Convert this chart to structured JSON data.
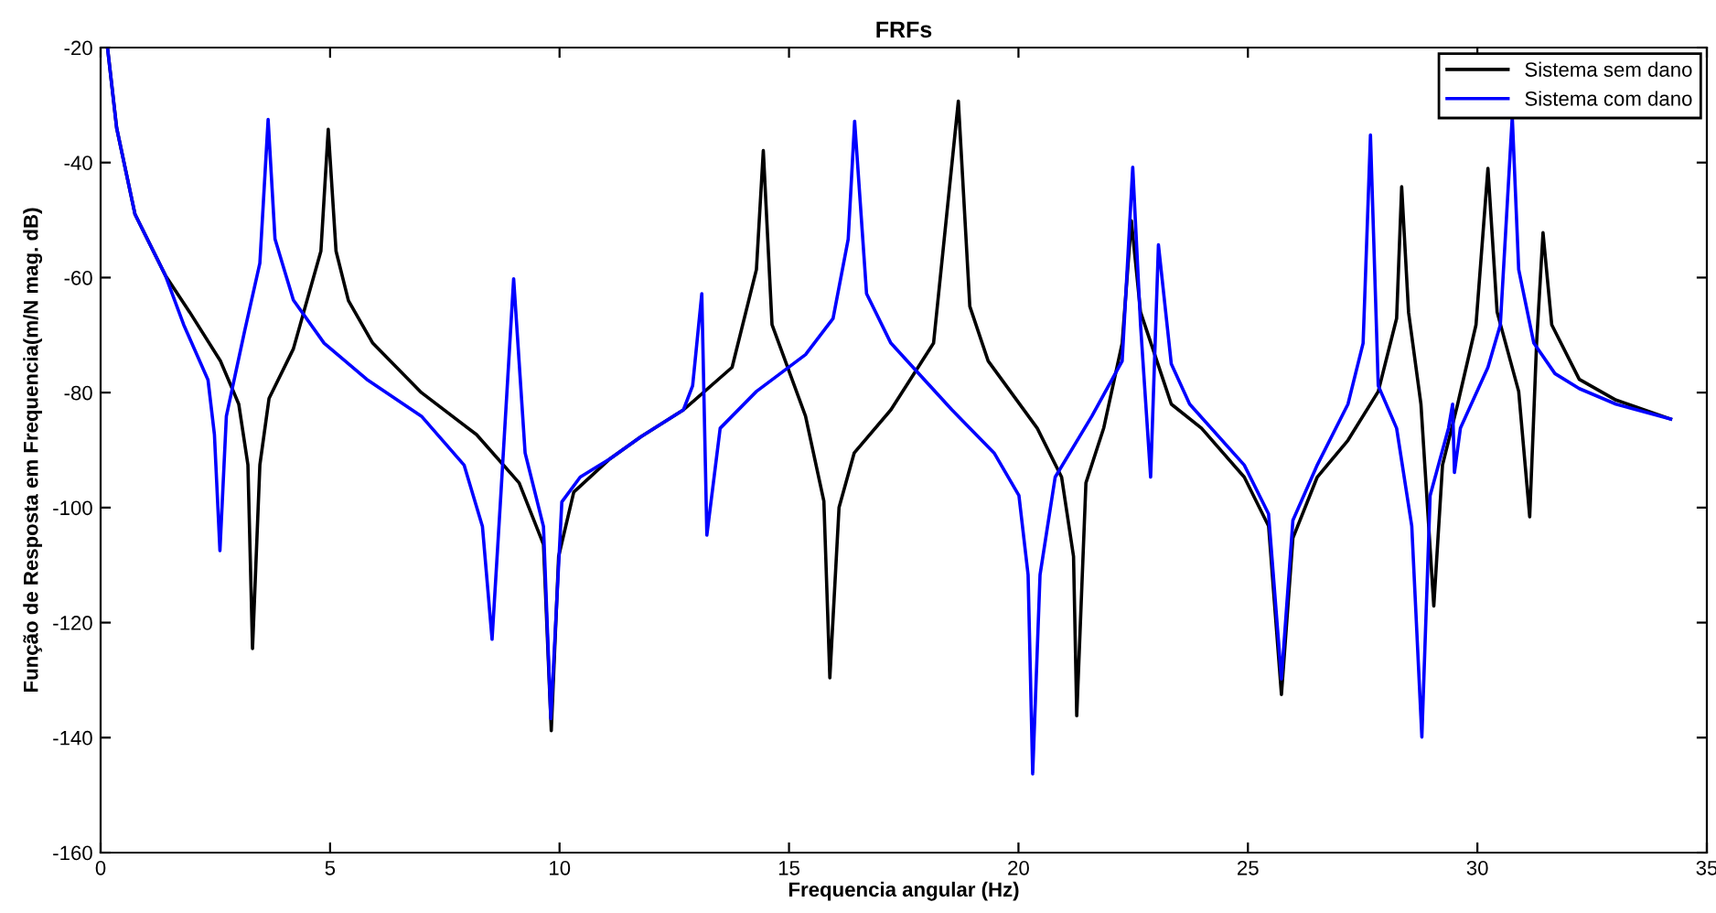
{
  "chart_data": {
    "type": "line",
    "title": "FRFs",
    "xlabel": "Frequencia angular (Hz)",
    "ylabel": "Função de Resposta em Frequencia(m/N mag. dB)",
    "xlim": [
      0,
      35
    ],
    "ylim": [
      -160,
      -20
    ],
    "xticks": [
      0,
      5,
      10,
      15,
      20,
      25,
      30,
      35
    ],
    "yticks": [
      -160,
      -140,
      -120,
      -100,
      -80,
      -60,
      -40,
      -20
    ],
    "grid": false,
    "legend": "top right",
    "marker": "none",
    "line_style": "solid",
    "series": [
      {
        "name": "Sistema sem dano",
        "color": "#000000",
        "x": [
          0.15,
          0.35,
          0.75,
          1.41,
          1.94,
          2.61,
          3.01,
          3.21,
          3.31,
          3.47,
          3.67,
          4.2,
          4.8,
          4.96,
          5.13,
          5.4,
          5.93,
          6.99,
          8.19,
          9.12,
          9.65,
          9.82,
          9.98,
          10.31,
          11.1,
          11.77,
          12.7,
          13.76,
          14.29,
          14.44,
          14.63,
          15.36,
          15.76,
          15.89,
          16.09,
          16.42,
          17.22,
          18.15,
          18.69,
          18.94,
          19.34,
          20.41,
          20.94,
          21.2,
          21.27,
          21.47,
          21.86,
          22.26,
          22.46,
          22.66,
          23.33,
          23.99,
          24.92,
          25.45,
          25.73,
          25.98,
          26.51,
          27.18,
          27.84,
          28.24,
          28.35,
          28.5,
          28.77,
          29.05,
          29.24,
          29.57,
          29.97,
          30.23,
          30.43,
          30.9,
          31.14,
          31.29,
          31.43,
          31.62,
          32.22,
          33.02,
          34.21
        ],
        "values": [
          -20,
          -34,
          -49,
          -59.6,
          -66,
          -74.5,
          -82,
          -92.6,
          -124.5,
          -92.6,
          -81,
          -72.4,
          -55.4,
          -34.2,
          -55.4,
          -64,
          -71.4,
          -80,
          -87.3,
          -95.7,
          -106.4,
          -138.8,
          -108.5,
          -97.3,
          -91.5,
          -87.7,
          -83,
          -75.6,
          -58.6,
          -37.9,
          -68.2,
          -84.1,
          -98.9,
          -129.6,
          -100,
          -90.5,
          -83,
          -71.4,
          -29.3,
          -65,
          -74.5,
          -86.2,
          -94.7,
          -108.5,
          -136.2,
          -95.7,
          -86.1,
          -71.4,
          -50.1,
          -66,
          -82,
          -86.2,
          -94.7,
          -103.2,
          -132.5,
          -105.3,
          -94.7,
          -88.3,
          -79.8,
          -67.1,
          -44.2,
          -66,
          -82,
          -117.1,
          -92.6,
          -82,
          -68.2,
          -41,
          -66,
          -79.8,
          -101.6,
          -71.4,
          -52.2,
          -68.2,
          -77.7,
          -81.3,
          -84.6
        ]
      },
      {
        "name": "Sistema com dano",
        "color": "#0000ff",
        "x": [
          0.15,
          0.35,
          0.75,
          1.41,
          1.81,
          2.34,
          2.48,
          2.6,
          2.74,
          3.14,
          3.47,
          3.65,
          3.8,
          4.2,
          4.87,
          5.8,
          6.99,
          7.92,
          8.32,
          8.53,
          8.72,
          9.0,
          9.25,
          9.65,
          9.81,
          10.05,
          10.45,
          11.1,
          11.77,
          12.7,
          12.9,
          13.1,
          13.21,
          13.5,
          14.29,
          15.36,
          15.96,
          16.29,
          16.43,
          16.69,
          17.22,
          18.55,
          19.47,
          20.01,
          20.21,
          20.31,
          20.47,
          20.8,
          21.6,
          22.26,
          22.49,
          22.66,
          22.88,
          23.05,
          23.33,
          23.73,
          24.92,
          25.45,
          25.73,
          25.98,
          26.51,
          27.18,
          27.51,
          27.67,
          27.84,
          28.24,
          28.57,
          28.79,
          28.97,
          29.37,
          29.46,
          29.5,
          29.63,
          30.23,
          30.5,
          30.76,
          30.9,
          31.23,
          31.69,
          32.22,
          33.02,
          34.21
        ],
        "values": [
          -20,
          -34,
          -49,
          -59.6,
          -68.2,
          -77.8,
          -87.3,
          -107.5,
          -84.1,
          -69.2,
          -57.5,
          -32.5,
          -53.3,
          -63.9,
          -71.4,
          -77.7,
          -84.1,
          -92.6,
          -103.3,
          -122.9,
          -97.9,
          -60.2,
          -90.5,
          -103.3,
          -136.7,
          -99,
          -94.7,
          -91.5,
          -87.7,
          -83,
          -78.8,
          -62.8,
          -104.8,
          -86.2,
          -79.8,
          -73.4,
          -67.1,
          -53.3,
          -32.8,
          -62.8,
          -71.4,
          -83,
          -90.5,
          -97.9,
          -111.7,
          -146.3,
          -111.7,
          -94.7,
          -84.1,
          -74.5,
          -40.8,
          -68.2,
          -94.7,
          -54.3,
          -75,
          -82,
          -92.6,
          -101.1,
          -129.8,
          -102.2,
          -92.6,
          -82,
          -71.4,
          -35.2,
          -78.8,
          -86.2,
          -103.2,
          -139.9,
          -97.9,
          -86.2,
          -82,
          -93.9,
          -86.2,
          -75.6,
          -68.2,
          -32,
          -58.6,
          -71.4,
          -76.7,
          -79.3,
          -82,
          -84.6
        ]
      }
    ]
  }
}
